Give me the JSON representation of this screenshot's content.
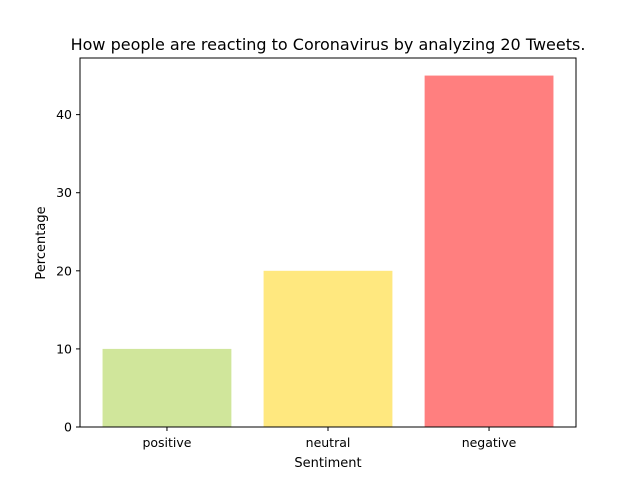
{
  "chart_data": {
    "type": "bar",
    "title": "How people are reacting to Coronavirus by analyzing 20 Tweets.",
    "xlabel": "Sentiment",
    "ylabel": "Percentage",
    "categories": [
      "positive",
      "neutral",
      "negative"
    ],
    "values": [
      10,
      20,
      45
    ],
    "colors": [
      "#d0e69b",
      "#ffe87f",
      "#ff7f7f"
    ],
    "ylim": [
      0,
      47.25
    ],
    "yticks": [
      0,
      10,
      20,
      30,
      40
    ],
    "grid": false,
    "legend": "none"
  }
}
